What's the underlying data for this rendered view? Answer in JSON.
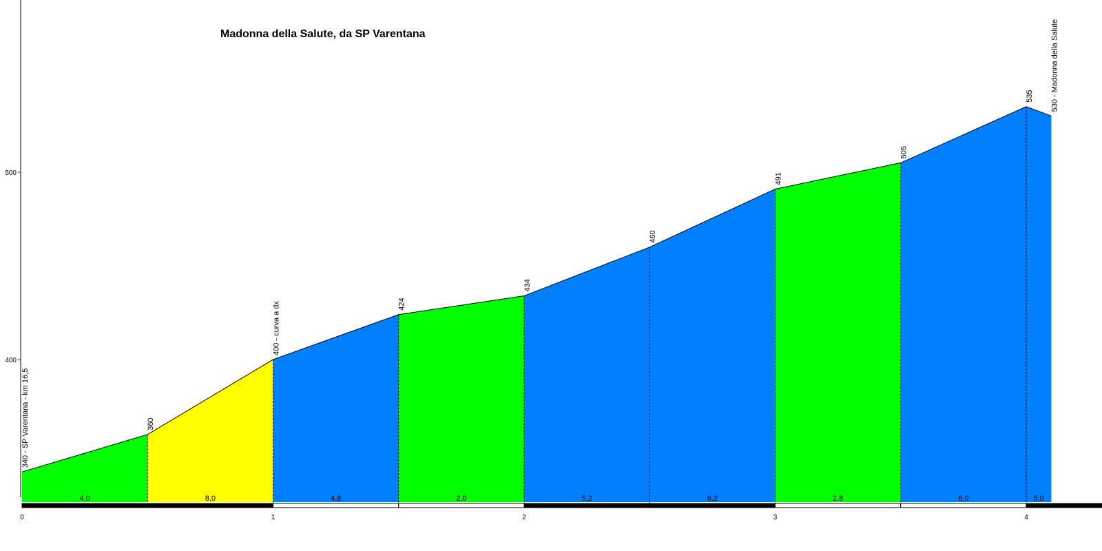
{
  "chart_data": {
    "type": "area",
    "title": "Madonna della Salute, da SP Varentana",
    "xlabel": "",
    "ylabel": "",
    "x_ticks": [
      "0",
      "1",
      "2",
      "3",
      "4"
    ],
    "y_ticks": [
      "400",
      "500"
    ],
    "xlim": [
      0,
      4.3
    ],
    "ylim": [
      322,
      590
    ],
    "points": [
      {
        "x": 0,
        "y": 340,
        "label": "340 - SP Varentana - km 16,5"
      },
      {
        "x": 0.5,
        "y": 360,
        "label": "360"
      },
      {
        "x": 1.0,
        "y": 400,
        "label": "400 - curva a dx"
      },
      {
        "x": 1.5,
        "y": 424,
        "label": "424"
      },
      {
        "x": 2.0,
        "y": 434,
        "label": "434"
      },
      {
        "x": 2.5,
        "y": 460,
        "label": "460"
      },
      {
        "x": 3.0,
        "y": 491,
        "label": "491"
      },
      {
        "x": 3.5,
        "y": 505,
        "label": "505"
      },
      {
        "x": 4.0,
        "y": 535,
        "label": "535"
      },
      {
        "x": 4.1,
        "y": 530,
        "label": "530 - Madonna della Salute"
      }
    ],
    "segments": [
      {
        "gradient": "4,0",
        "color": "#00ff00"
      },
      {
        "gradient": "8,0",
        "color": "#ffff00"
      },
      {
        "gradient": "4,8",
        "color": "#0080ff"
      },
      {
        "gradient": "2,0",
        "color": "#00ff00"
      },
      {
        "gradient": "5,2",
        "color": "#0080ff"
      },
      {
        "gradient": "6,2",
        "color": "#0080ff"
      },
      {
        "gradient": "2,8",
        "color": "#00ff00"
      },
      {
        "gradient": "6,0",
        "color": "#0080ff"
      },
      {
        "gradient": "5,0",
        "color": "#0080ff"
      }
    ],
    "grid": false,
    "legend": "none"
  }
}
